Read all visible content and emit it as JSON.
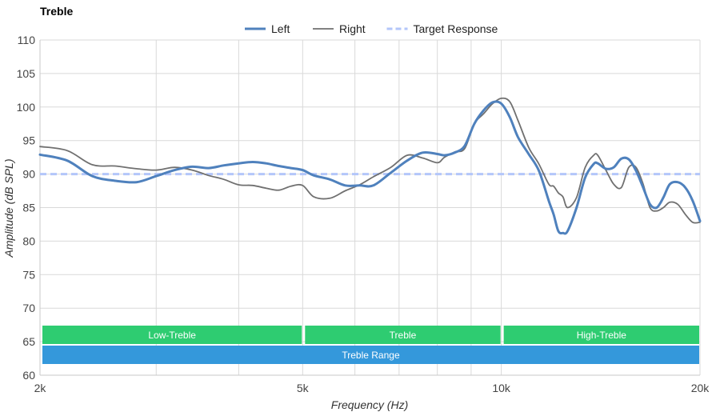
{
  "chart_data": {
    "type": "line",
    "title": "Treble",
    "xlabel": "Frequency (Hz)",
    "ylabel": "Amplitude (dB SPL)",
    "xscale": "log",
    "xlim": [
      2000,
      20000
    ],
    "ylim": [
      60,
      110
    ],
    "x_ticks": [
      {
        "value": 2000,
        "label": "2k"
      },
      {
        "value": 5000,
        "label": "5k"
      },
      {
        "value": 10000,
        "label": "10k"
      },
      {
        "value": 20000,
        "label": "20k"
      }
    ],
    "x_gridlines": [
      2000,
      3000,
      4000,
      5000,
      6000,
      7000,
      8000,
      9000,
      10000,
      20000
    ],
    "y_ticks": [
      110,
      105,
      100,
      95,
      90,
      85,
      80,
      75,
      70,
      65,
      60
    ],
    "grid": true,
    "legend_position": "top-center",
    "series": [
      {
        "name": "Left",
        "color": "#4f81bd",
        "style": "solid-thick",
        "x": [
          2000,
          2200,
          2400,
          2600,
          2800,
          3000,
          3200,
          3400,
          3600,
          3800,
          4000,
          4200,
          4400,
          4600,
          4800,
          5000,
          5200,
          5500,
          5800,
          6100,
          6400,
          6800,
          7200,
          7600,
          8000,
          8200,
          8500,
          8800,
          9100,
          9400,
          9700,
          10000,
          10300,
          10600,
          11000,
          11400,
          11800,
          12000,
          12200,
          12400,
          12600,
          13000,
          13400,
          13800,
          14000,
          14400,
          14800,
          15200,
          15600,
          16000,
          16400,
          16800,
          17200,
          17600,
          18000,
          18500,
          19000,
          19500,
          20000
        ],
        "y": [
          92.9,
          92.0,
          89.7,
          89.0,
          88.8,
          89.7,
          90.6,
          91.1,
          90.9,
          91.3,
          91.6,
          91.8,
          91.6,
          91.2,
          90.9,
          90.6,
          89.8,
          89.2,
          88.3,
          88.3,
          88.3,
          90.2,
          92.0,
          93.2,
          93.0,
          92.8,
          93.2,
          94.2,
          97.5,
          99.5,
          100.7,
          100.5,
          98.5,
          95.5,
          93.0,
          90.5,
          86.0,
          84.0,
          81.5,
          81.2,
          81.5,
          85.0,
          89.5,
          91.5,
          91.6,
          90.8,
          91.0,
          92.3,
          92.2,
          90.5,
          88.0,
          85.5,
          85.0,
          86.5,
          88.5,
          88.8,
          88.0,
          86.0,
          83.0
        ]
      },
      {
        "name": "Right",
        "color": "#707070",
        "style": "solid-thin",
        "x": [
          2000,
          2200,
          2400,
          2600,
          2800,
          3000,
          3200,
          3400,
          3600,
          3800,
          4000,
          4200,
          4400,
          4600,
          4800,
          5000,
          5200,
          5500,
          5800,
          6100,
          6400,
          6800,
          7200,
          7600,
          8000,
          8200,
          8500,
          8800,
          9100,
          9400,
          9700,
          10000,
          10300,
          10600,
          11000,
          11400,
          11800,
          12000,
          12200,
          12400,
          12600,
          13000,
          13400,
          13800,
          14000,
          14400,
          14800,
          15200,
          15600,
          16000,
          16400,
          16800,
          17200,
          17600,
          18000,
          18500,
          19000,
          19500,
          20000
        ],
        "y": [
          94.1,
          93.5,
          91.4,
          91.2,
          90.8,
          90.6,
          91.0,
          90.6,
          89.8,
          89.2,
          88.4,
          88.3,
          87.9,
          87.6,
          88.2,
          88.3,
          86.6,
          86.4,
          87.5,
          88.4,
          89.6,
          91.0,
          92.8,
          92.4,
          91.7,
          92.5,
          93.3,
          93.8,
          97.5,
          99.0,
          100.5,
          101.3,
          100.8,
          98.0,
          94.0,
          91.5,
          88.5,
          88.2,
          87.2,
          86.6,
          85.0,
          86.5,
          91.0,
          92.8,
          92.8,
          90.6,
          88.5,
          88.0,
          91.0,
          91.0,
          88.5,
          85.0,
          84.5,
          85.0,
          85.8,
          85.5,
          84.0,
          82.8,
          82.8
        ]
      },
      {
        "name": "Target Response",
        "color": "#b3c6fa",
        "style": "dashed",
        "x": [
          2000,
          20000
        ],
        "y": [
          90,
          90
        ]
      }
    ],
    "bands": [
      {
        "label": "Low-Treble",
        "from": 2000,
        "to": 5000,
        "color": "#2ecc71",
        "row": 1
      },
      {
        "label": "Treble",
        "from": 5000,
        "to": 10000,
        "color": "#2ecc71",
        "row": 1
      },
      {
        "label": "High-Treble",
        "from": 10000,
        "to": 20000,
        "color": "#2ecc71",
        "row": 1
      },
      {
        "label": "Treble Range",
        "from": 2000,
        "to": 20000,
        "color": "#3498db",
        "row": 2
      }
    ]
  }
}
